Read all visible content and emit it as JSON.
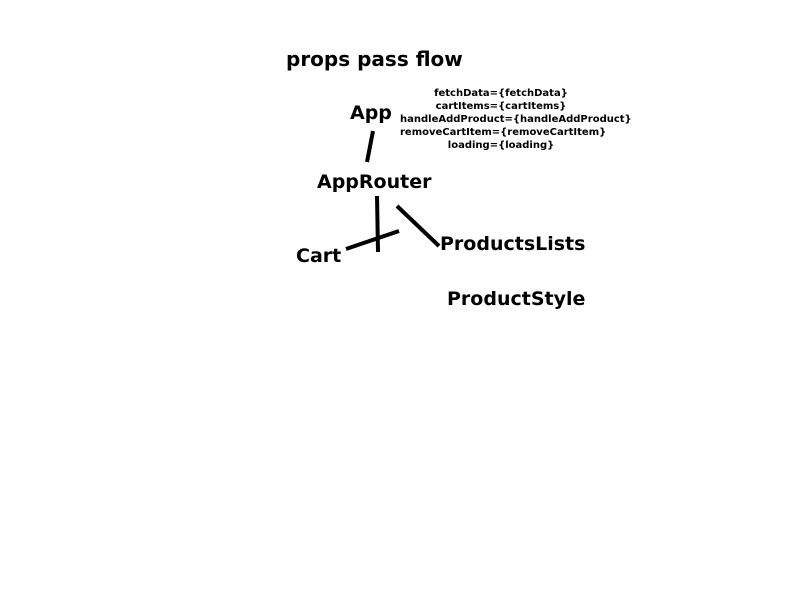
{
  "diagram": {
    "title": "props pass flow",
    "nodes": {
      "app": "App",
      "approuter": "AppRouter",
      "cart": "Cart",
      "productslists": "ProductsLists",
      "productstyle": "ProductStyle"
    },
    "props_annotation": [
      "fetchData={fetchData}",
      "cartItems={cartItems}",
      "handleAddProduct={handleAddProduct}",
      "removeCartItem={removeCartItem}",
      "loading={loading}"
    ],
    "edges": [
      {
        "from": "App",
        "to": "AppRouter"
      },
      {
        "from": "AppRouter",
        "to": "Cart"
      },
      {
        "from": "AppRouter",
        "to": "ProductsLists"
      }
    ],
    "colors": {
      "background": "#ffffff",
      "ink": "#000000"
    }
  }
}
